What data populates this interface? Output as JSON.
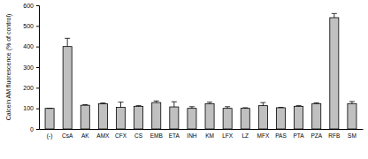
{
  "chart_data": {
    "type": "bar",
    "y_label": "Calcein AM fluorescence (% of control)",
    "categories": [
      "(-)",
      "CsA",
      "AK",
      "AMX",
      "CFX",
      "CS",
      "EMB",
      "ETA",
      "INH",
      "KM",
      "LFX",
      "LZ",
      "MFX",
      "PAS",
      "PTA",
      "PZA",
      "RFB",
      "SM"
    ],
    "values": [
      100,
      400,
      115,
      122,
      105,
      110,
      128,
      107,
      100,
      122,
      100,
      100,
      113,
      103,
      110,
      123,
      540,
      123
    ],
    "errors": [
      0,
      40,
      3,
      4,
      25,
      3,
      8,
      25,
      8,
      8,
      8,
      3,
      15,
      2,
      3,
      4,
      20,
      10
    ],
    "color": "#c0c0c0",
    "ylim": [
      0,
      600
    ],
    "yticks": [
      0,
      100,
      200,
      300,
      400,
      500,
      600
    ],
    "grid": false
  }
}
